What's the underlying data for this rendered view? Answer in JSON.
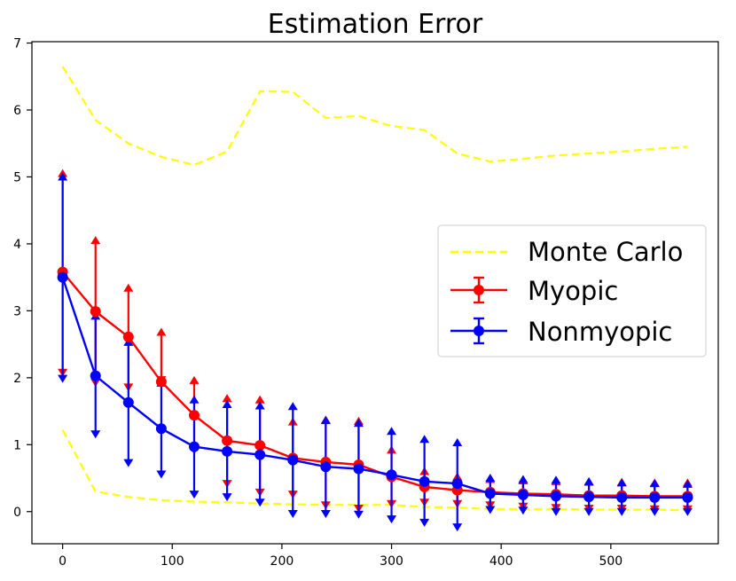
{
  "chart_data": {
    "type": "line",
    "title": "Estimation Error",
    "xlabel": "",
    "ylabel": "",
    "xlim": [
      -28,
      598
    ],
    "ylim": [
      -0.48,
      7.02
    ],
    "xticks": [
      0,
      100,
      200,
      300,
      400,
      500
    ],
    "yticks": [
      0,
      1,
      2,
      3,
      4,
      5,
      6,
      7
    ],
    "legend_position": "center-right",
    "colors": {
      "monte_carlo": "#ffff00",
      "myopic": "#ff0000",
      "nonmyopic": "#0000ff",
      "axis": "#000000"
    },
    "x": [
      0,
      30,
      60,
      90,
      120,
      150,
      180,
      210,
      240,
      270,
      300,
      330,
      360,
      390,
      420,
      450,
      480,
      510,
      540,
      570
    ],
    "monte_carlo": {
      "name": "Monte Carlo",
      "upper": [
        6.65,
        5.85,
        5.5,
        5.3,
        5.18,
        5.38,
        6.28,
        6.27,
        5.88,
        5.91,
        5.76,
        5.7,
        5.35,
        5.23,
        5.27,
        5.32,
        5.35,
        5.38,
        5.42,
        5.45
      ],
      "lower": [
        1.22,
        0.3,
        0.22,
        0.17,
        0.15,
        0.14,
        0.12,
        0.11,
        0.1,
        0.1,
        0.1,
        0.07,
        0.06,
        0.04,
        0.04,
        0.04,
        0.03,
        0.03,
        0.03,
        0.02
      ]
    },
    "series": [
      {
        "name": "Myopic",
        "values": [
          3.58,
          2.99,
          2.61,
          1.94,
          1.44,
          1.06,
          0.99,
          0.8,
          0.74,
          0.7,
          0.52,
          0.37,
          0.32,
          0.29,
          0.27,
          0.26,
          0.24,
          0.24,
          0.23,
          0.23
        ],
        "err_low": [
          2.08,
          1.93,
          1.86,
          1.97,
          0.92,
          0.42,
          0.29,
          0.26,
          0.1,
          0.05,
          0.12,
          0.14,
          0.12,
          0.1,
          0.08,
          0.06,
          0.05,
          0.05,
          0.04,
          0.04
        ],
        "err_high": [
          5.05,
          4.05,
          3.34,
          2.68,
          1.96,
          1.69,
          1.67,
          1.34,
          1.37,
          1.35,
          0.92,
          0.6,
          0.52,
          0.48,
          0.46,
          0.45,
          0.44,
          0.44,
          0.43,
          0.43
        ]
      },
      {
        "name": "Nonmyopic",
        "values": [
          3.5,
          2.03,
          1.63,
          1.24,
          0.97,
          0.9,
          0.85,
          0.77,
          0.67,
          0.64,
          0.55,
          0.45,
          0.42,
          0.27,
          0.25,
          0.23,
          0.22,
          0.21,
          0.21,
          0.21
        ],
        "err_low": [
          1.99,
          1.16,
          0.73,
          0.56,
          0.26,
          0.22,
          0.14,
          -0.03,
          -0.03,
          -0.04,
          -0.11,
          -0.16,
          -0.23,
          0.03,
          0.02,
          0.0,
          0.0,
          0.0,
          0.0,
          0.0
        ],
        "err_high": [
          5.0,
          2.92,
          2.53,
          1.92,
          1.67,
          1.6,
          1.58,
          1.57,
          1.36,
          1.32,
          1.2,
          1.08,
          1.03,
          0.5,
          0.48,
          0.47,
          0.45,
          0.43,
          0.42,
          0.41
        ]
      }
    ]
  }
}
